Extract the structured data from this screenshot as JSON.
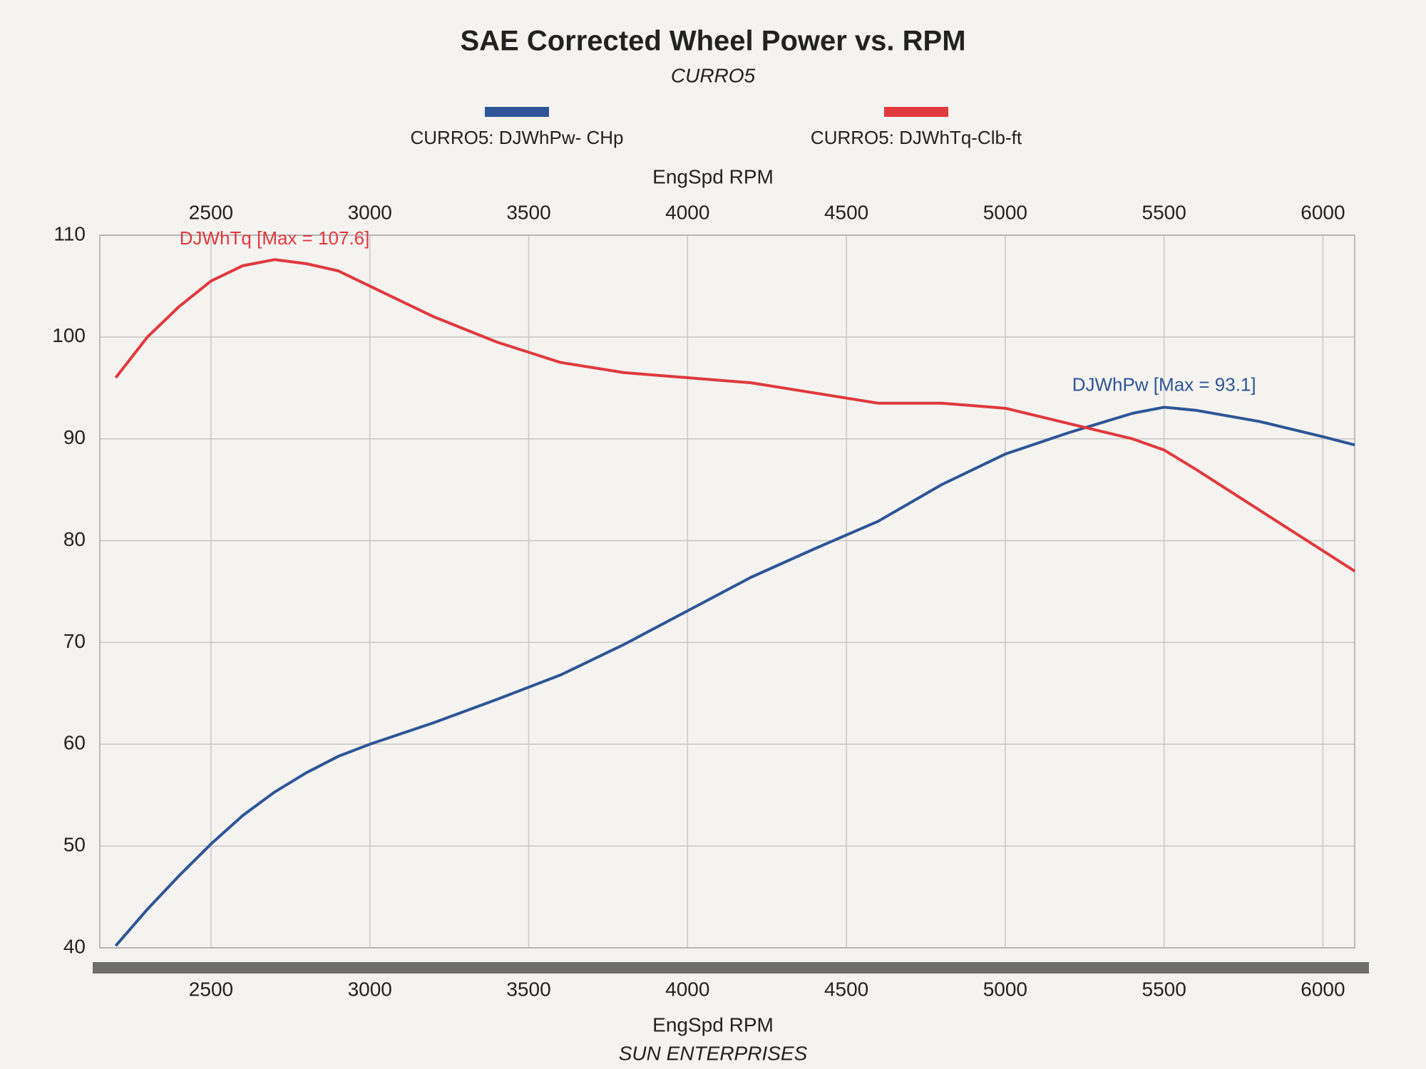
{
  "chart_data": {
    "type": "line",
    "title": "SAE Corrected Wheel Power vs. RPM",
    "subtitle": "CURRO5",
    "footer": "SUN ENTERPRISES",
    "x_label": "EngSpd  RPM",
    "x": [
      2200,
      2300,
      2400,
      2500,
      2600,
      2700,
      2800,
      2900,
      3000,
      3200,
      3400,
      3600,
      3800,
      4000,
      4200,
      4400,
      4600,
      4800,
      5000,
      5200,
      5400,
      5500,
      5600,
      5800,
      6000,
      6100
    ],
    "series": [
      {
        "name": "CURRO5: DJWhPw- CHp",
        "color": "#2f5597",
        "values": [
          40.2,
          43.8,
          47.1,
          50.2,
          53.0,
          55.3,
          57.2,
          58.8,
          60.0,
          62.1,
          64.4,
          66.8,
          69.8,
          73.1,
          76.4,
          79.2,
          81.9,
          85.5,
          88.5,
          90.6,
          92.5,
          93.1,
          92.8,
          91.7,
          90.2,
          89.4
        ]
      },
      {
        "name": "CURRO5: DJWhTq-Clb-ft",
        "color": "#e0393e",
        "values": [
          96,
          100,
          103,
          105.5,
          107,
          107.6,
          107.2,
          106.5,
          105,
          102,
          99.5,
          97.5,
          96.5,
          96,
          95.5,
          94.5,
          93.5,
          93.5,
          93,
          91.5,
          90,
          88.9,
          87,
          83,
          79,
          77
        ]
      }
    ],
    "annotations": [
      "DJWhPw [Max = 93.1]",
      "DJWhTq [Max = 107.6]"
    ],
    "xlim": [
      2150,
      6100
    ],
    "xticks": [
      2500,
      3000,
      3500,
      4000,
      4500,
      5000,
      5500,
      6000
    ],
    "ylim": [
      40,
      110
    ],
    "yticks": [
      40,
      50,
      60,
      70,
      80,
      90,
      100,
      110
    ],
    "grid": true
  }
}
